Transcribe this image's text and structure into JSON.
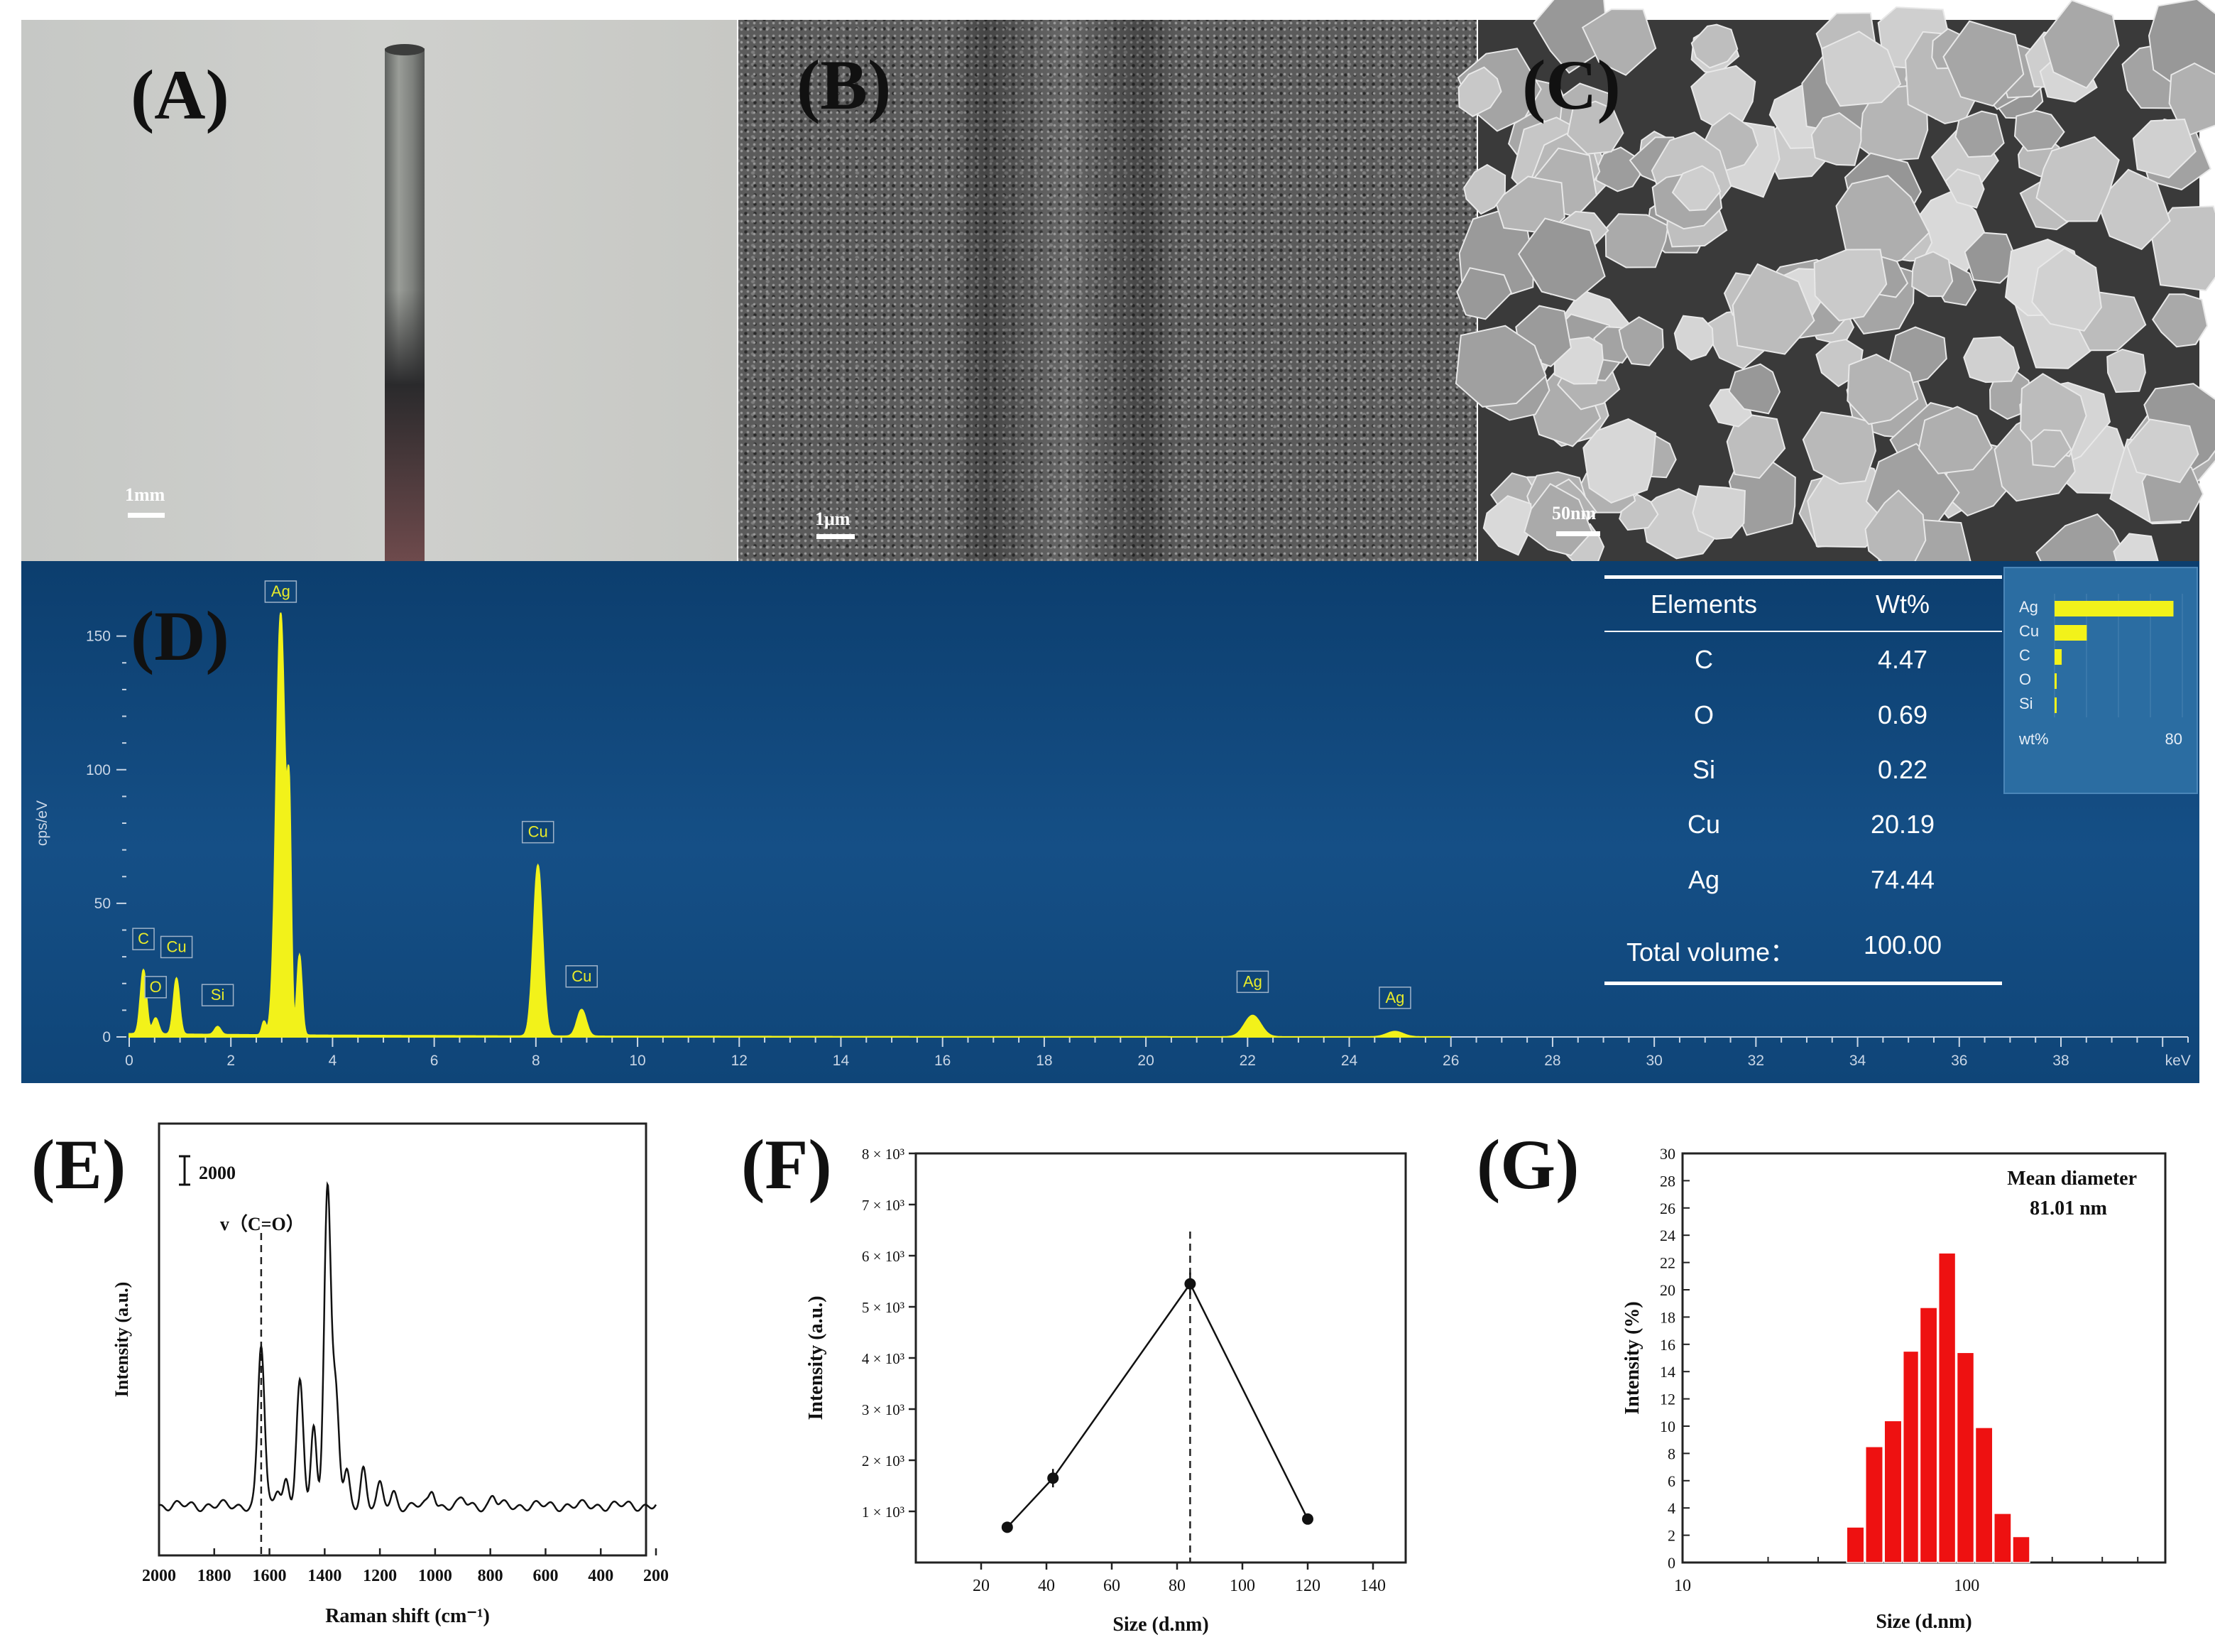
{
  "panels": {
    "a": {
      "letter": "(A)",
      "scale_label": "1mm"
    },
    "b": {
      "letter": "(B)",
      "scale_label": "1μm"
    },
    "c": {
      "letter": "(C)",
      "scale_label": "50nm"
    },
    "d": {
      "letter": "(D)"
    },
    "e": {
      "letter": "(E)"
    },
    "f": {
      "letter": "(F)"
    },
    "g": {
      "letter": "(G)"
    }
  },
  "eds_table": {
    "headers": [
      "Elements",
      "Wt%"
    ],
    "rows": [
      {
        "element": "C",
        "wt": "4.47"
      },
      {
        "element": "O",
        "wt": "0.69"
      },
      {
        "element": "Si",
        "wt": "0.22"
      },
      {
        "element": "Cu",
        "wt": "20.19"
      },
      {
        "element": "Ag",
        "wt": "74.44"
      }
    ],
    "total_label": "Total volume：",
    "total_value": "100.00"
  },
  "eds_inset": {
    "elements": [
      "Ag",
      "Cu",
      "C",
      "O",
      "Si"
    ],
    "values": [
      74.44,
      20.19,
      4.47,
      0.69,
      0.22
    ],
    "axis_label": "wt%",
    "axis_max_label": "80",
    "bar_color": "#f2f21a"
  },
  "colors": {
    "eds_background": "#0f4578",
    "eds_spectrum": "#f2f21a",
    "histogram_bar": "#ee1111"
  },
  "chart_data": [
    {
      "type": "line",
      "panel": "D",
      "ylabel": "cps/eV",
      "xunit": "keV",
      "x_ticks": [
        "0",
        "2",
        "4",
        "6",
        "8",
        "10",
        "12",
        "14",
        "16",
        "18",
        "20",
        "22",
        "24",
        "26",
        "28",
        "30",
        "32",
        "34",
        "36",
        "38"
      ],
      "y_ticks": [
        "0",
        "50",
        "100",
        "150"
      ],
      "xlim": [
        0,
        40.5
      ],
      "ylim": [
        0,
        160
      ],
      "peaks": [
        {
          "x": 0.28,
          "y": 24,
          "label": "C"
        },
        {
          "x": 0.52,
          "y": 6,
          "label": "O"
        },
        {
          "x": 0.93,
          "y": 21,
          "label": "Cu"
        },
        {
          "x": 1.74,
          "y": 3,
          "label": "Si"
        },
        {
          "x": 2.98,
          "y": 158,
          "label": "Ag"
        },
        {
          "x": 8.04,
          "y": 64,
          "label": "Cu"
        },
        {
          "x": 8.9,
          "y": 10,
          "label": "Cu"
        },
        {
          "x": 22.1,
          "y": 8,
          "label": "Ag"
        },
        {
          "x": 24.9,
          "y": 2,
          "label": "Ag"
        }
      ]
    },
    {
      "type": "line",
      "panel": "E",
      "xlabel": "Raman shift (cm⁻¹)",
      "ylabel": "Intensity (a.u.)",
      "x_ticks": [
        "2000",
        "1800",
        "1600",
        "1400",
        "1200",
        "1000",
        "800",
        "600",
        "400",
        "200"
      ],
      "xlim": [
        2000,
        200
      ],
      "scale_bar_label": "2000",
      "annotation": "v（C=O）",
      "annotation_x": 1630,
      "peaks": [
        {
          "x": 1630,
          "y": 0.5
        },
        {
          "x": 1570,
          "y": 0.06
        },
        {
          "x": 1540,
          "y": 0.08
        },
        {
          "x": 1490,
          "y": 0.38
        },
        {
          "x": 1440,
          "y": 0.25
        },
        {
          "x": 1390,
          "y": 1.0
        },
        {
          "x": 1360,
          "y": 0.35
        },
        {
          "x": 1320,
          "y": 0.1
        },
        {
          "x": 1260,
          "y": 0.12
        },
        {
          "x": 1200,
          "y": 0.06
        },
        {
          "x": 1150,
          "y": 0.04
        },
        {
          "x": 1010,
          "y": 0.05
        },
        {
          "x": 900,
          "y": 0.02
        },
        {
          "x": 790,
          "y": 0.03
        }
      ]
    },
    {
      "type": "line",
      "panel": "F",
      "xlabel": "Size (d.nm)",
      "ylabel": "Intensity (a.u.)",
      "x_ticks": [
        "20",
        "40",
        "60",
        "80",
        "100",
        "120",
        "140"
      ],
      "xlim": [
        0,
        150
      ],
      "y_ticks": [
        "1 × 10³",
        "2 × 10³",
        "3 × 10³",
        "4 × 10³",
        "5 × 10³",
        "6 × 10³",
        "7 × 10³",
        "8 × 10³"
      ],
      "ylim": [
        0,
        8000
      ],
      "x": [
        28,
        42,
        84,
        120
      ],
      "y": [
        690,
        1650,
        5450,
        850
      ],
      "y_err": [
        100,
        180,
        220,
        100
      ],
      "reference_line_x": 84
    },
    {
      "type": "bar",
      "panel": "G",
      "xlabel": "Size (d.nm)",
      "ylabel": "Intensity (%)",
      "x_ticks": [
        "10",
        "100"
      ],
      "x_scale": "log",
      "xlim": [
        10,
        500
      ],
      "y_ticks": [
        "0",
        "2",
        "4",
        "6",
        "8",
        "10",
        "12",
        "14",
        "16",
        "18",
        "20",
        "22",
        "24",
        "26",
        "28",
        "30"
      ],
      "ylim": [
        0,
        30
      ],
      "annotation_title": "Mean diameter",
      "annotation_value": "81.01 nm",
      "bin_edges": [
        37.6,
        43.8,
        51.0,
        59.4,
        68.1,
        79.2,
        91.9,
        106.7,
        124.1,
        144.3,
        167.6
      ],
      "values": [
        2.6,
        8.5,
        10.4,
        15.5,
        18.7,
        22.7,
        15.4,
        9.9,
        3.6,
        1.9
      ]
    }
  ]
}
